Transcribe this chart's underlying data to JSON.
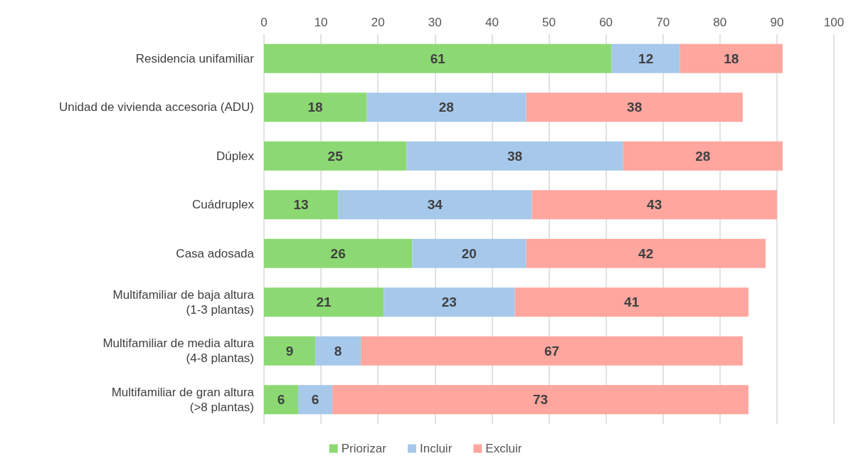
{
  "chart_data": {
    "type": "bar",
    "orientation": "horizontal",
    "stacked": true,
    "data_labels": true,
    "grid": "x",
    "legend": "bottom",
    "categories": [
      "Residencia unifamiliar",
      "Unidad de vivienda accesoria (ADU)",
      "Dúplex",
      "Cuádruplex",
      "Casa adosada",
      "Multifamiliar de baja altura\n(1-3 plantas)",
      "Multifamiliar de media altura\n(4-8 plantas)",
      "Multifamiliar de gran altura\n(>8 plantas)"
    ],
    "series": [
      {
        "name": "Priorizar",
        "color": "#8cd973",
        "values": [
          61,
          18,
          25,
          13,
          26,
          21,
          9,
          6
        ]
      },
      {
        "name": "Incluir",
        "color": "#a6c8eb",
        "values": [
          12,
          28,
          38,
          34,
          20,
          23,
          8,
          6
        ]
      },
      {
        "name": "Excluir",
        "color": "#ffa69e",
        "values": [
          18,
          38,
          28,
          43,
          42,
          41,
          67,
          73
        ]
      }
    ],
    "xlim": [
      0,
      100
    ],
    "xticks": [
      0,
      10,
      20,
      30,
      40,
      50,
      60,
      70,
      80,
      90,
      100
    ]
  }
}
